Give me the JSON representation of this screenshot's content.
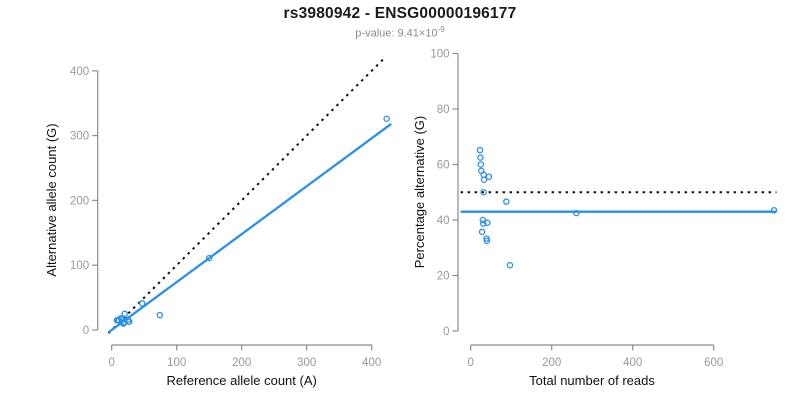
{
  "header": {
    "title": "rs3980942 - ENSG00000196177",
    "pvalue_prefix": "p-value: ",
    "pvalue_mantissa": "9.41×10",
    "pvalue_exponent": "-9"
  },
  "colors": {
    "accent_blue": "#2B90E8",
    "dotted_black": "#111111",
    "axis_gray": "#8c8c8c",
    "tick_label_gray": "#999999"
  },
  "chart_data": [
    {
      "type": "scatter",
      "name": "allele-counts-panel",
      "xlabel": "Reference allele count (A)",
      "ylabel": "Alternative allele count (G)",
      "xlim": [
        0,
        430
      ],
      "ylim": [
        0,
        425
      ],
      "xticks": [
        0,
        100,
        200,
        300,
        400
      ],
      "yticks": [
        0,
        100,
        200,
        300,
        400
      ],
      "grid": false,
      "legend": "none",
      "point_color": "#2B90E8",
      "points": [
        [
          8,
          15
        ],
        [
          9,
          15
        ],
        [
          10,
          15
        ],
        [
          11,
          15
        ],
        [
          14,
          18
        ],
        [
          20,
          25
        ],
        [
          15,
          18
        ],
        [
          16,
          16
        ],
        [
          47,
          41
        ],
        [
          18,
          12
        ],
        [
          19,
          12
        ],
        [
          25,
          16
        ],
        [
          18,
          10
        ],
        [
          26,
          13
        ],
        [
          27,
          13
        ],
        [
          74,
          23
        ],
        [
          150,
          111
        ],
        [
          423,
          326
        ]
      ],
      "lines": [
        {
          "name": "identity-line",
          "style": "dotted",
          "color": "#111111",
          "points": [
            [
              -5,
              -5
            ],
            [
              421,
              421
            ]
          ]
        },
        {
          "name": "fit-line",
          "style": "solid",
          "color": "#2B90E8",
          "points": [
            [
              -5,
              -3.7
            ],
            [
              430,
              318
            ]
          ]
        }
      ]
    },
    {
      "type": "scatter",
      "name": "percentage-panel",
      "xlabel": "Total number of reads",
      "ylabel": "Percentage alternative (G)",
      "xlim": [
        0,
        760
      ],
      "ylim": [
        0,
        100
      ],
      "xticks": [
        0,
        200,
        400,
        600
      ],
      "yticks": [
        0,
        20,
        40,
        60,
        80,
        100
      ],
      "grid": false,
      "legend": "none",
      "point_color": "#2B90E8",
      "points": [
        [
          23,
          65.2
        ],
        [
          24,
          62.5
        ],
        [
          25,
          60.0
        ],
        [
          26,
          57.7
        ],
        [
          32,
          56.3
        ],
        [
          45,
          55.6
        ],
        [
          33,
          54.5
        ],
        [
          32,
          50.0
        ],
        [
          88,
          46.6
        ],
        [
          30,
          40.0
        ],
        [
          31,
          38.7
        ],
        [
          41,
          39.0
        ],
        [
          28,
          35.7
        ],
        [
          39,
          33.3
        ],
        [
          40,
          32.5
        ],
        [
          97,
          23.7
        ],
        [
          261,
          42.5
        ],
        [
          749,
          43.5
        ]
      ],
      "lines": [
        {
          "name": "fifty-percent-line",
          "style": "dotted",
          "color": "#111111",
          "points": [
            [
              -25,
              50
            ],
            [
              755,
              50
            ]
          ]
        },
        {
          "name": "mean-percentage-line",
          "style": "solid",
          "color": "#2B90E8",
          "points": [
            [
              -25,
              43
            ],
            [
              755,
              43
            ]
          ]
        }
      ]
    }
  ]
}
